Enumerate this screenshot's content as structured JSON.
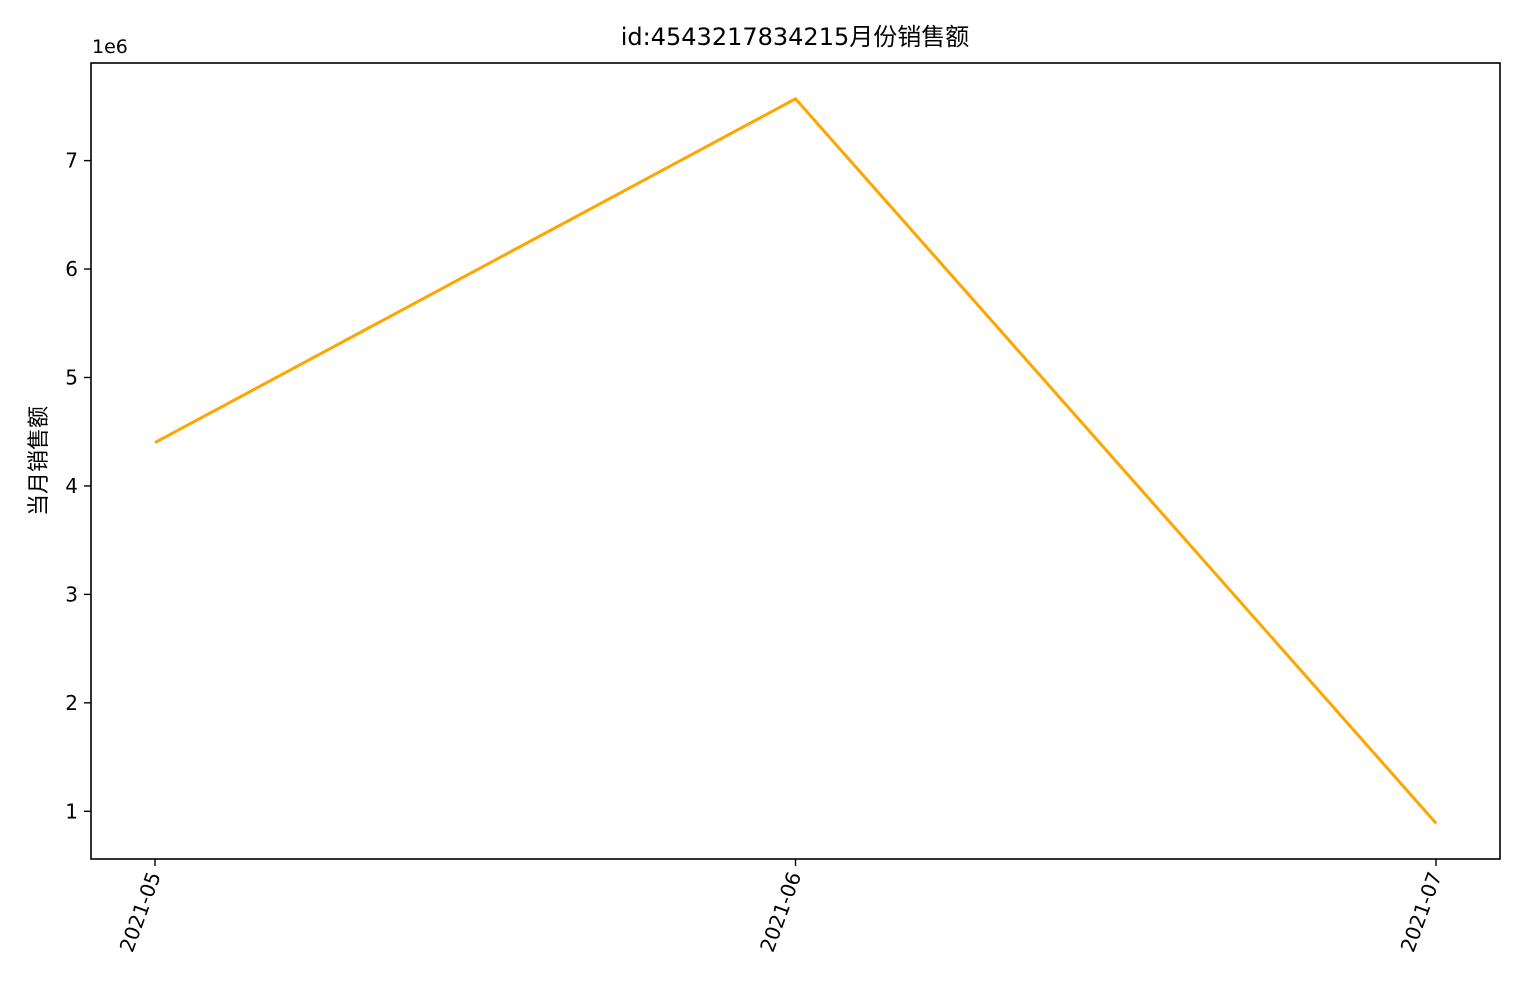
{
  "chart_data": {
    "type": "line",
    "title": "id:4543217834215月份销售额",
    "xlabel": "",
    "ylabel": "当月销售额",
    "y_offset_label": "1e6",
    "categories": [
      "2021-05",
      "2021-06",
      "2021-07"
    ],
    "series": [
      {
        "values": [
          4400000,
          7570000,
          890000
        ],
        "color": "#FFA500"
      }
    ],
    "ylim": [
      560000,
      7900000
    ],
    "yticks": [
      1,
      2,
      3,
      4,
      5,
      6,
      7
    ],
    "ytick_labels": [
      "1",
      "2",
      "3",
      "4",
      "5",
      "6",
      "7"
    ],
    "y_scale_factor": 1000000,
    "xtick_rotation": 70,
    "grid": false,
    "legend": "none"
  }
}
